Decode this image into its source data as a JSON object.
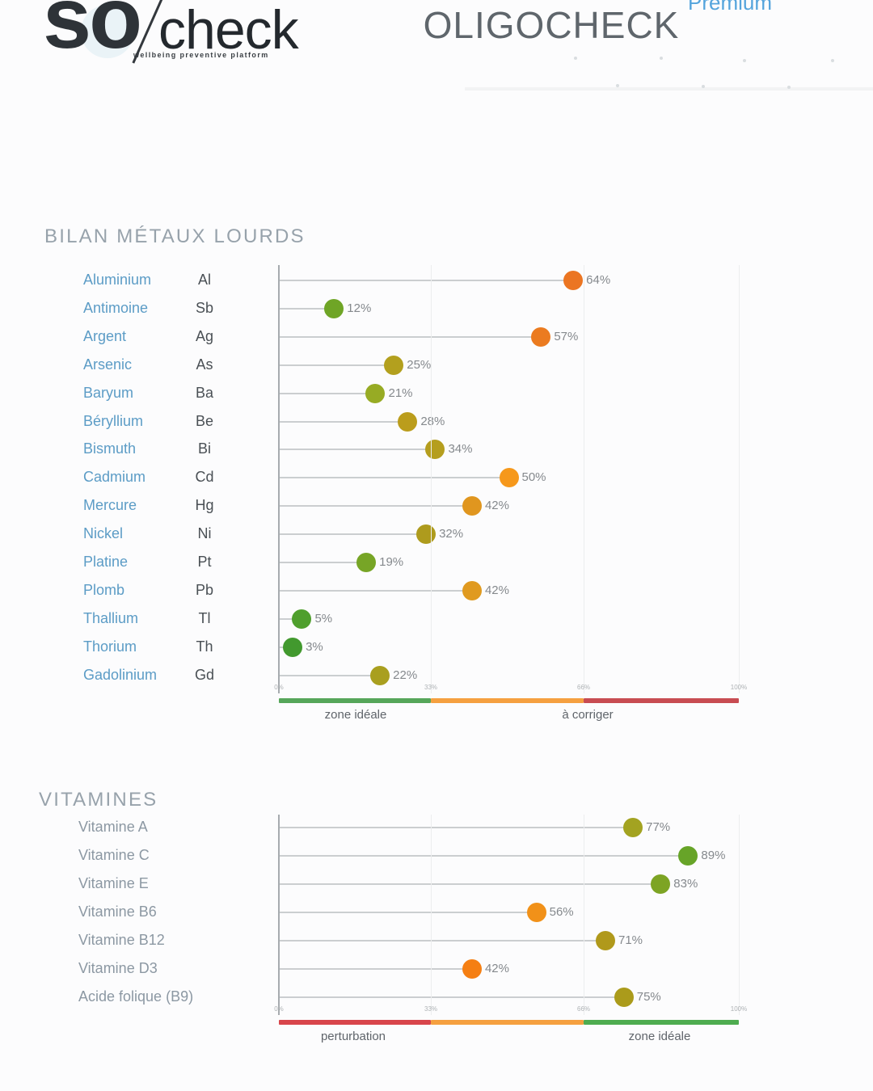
{
  "page": {
    "logo": {
      "part1": "so",
      "part2": "check",
      "tagline": "wellbeing preventive platform"
    },
    "title": "OLIGOCHECK",
    "badge": "Premium"
  },
  "metals_chart": {
    "heading": "BILAN MÉTAUX LOURDS",
    "rows": [
      {
        "name": "Aluminium",
        "symbol": "Al",
        "value": 64,
        "label": "64%",
        "color": "#EB7522"
      },
      {
        "name": "Antimoine",
        "symbol": "Sb",
        "value": 12,
        "label": "12%",
        "color": "#6FA526"
      },
      {
        "name": "Argent",
        "symbol": "Ag",
        "value": 57,
        "label": "57%",
        "color": "#EB7B20"
      },
      {
        "name": "Arsenic",
        "symbol": "As",
        "value": 25,
        "label": "25%",
        "color": "#B3A01E"
      },
      {
        "name": "Baryum",
        "symbol": "Ba",
        "value": 21,
        "label": "21%",
        "color": "#97AB24"
      },
      {
        "name": "Béryllium",
        "symbol": "Be",
        "value": 28,
        "label": "28%",
        "color": "#BB9D1C"
      },
      {
        "name": "Bismuth",
        "symbol": "Bi",
        "value": 34,
        "label": "34%",
        "color": "#B59E1E"
      },
      {
        "name": "Cadmium",
        "symbol": "Cd",
        "value": 50,
        "label": "50%",
        "color": "#F6981B"
      },
      {
        "name": "Mercure",
        "symbol": "Hg",
        "value": 42,
        "label": "42%",
        "color": "#E0961F"
      },
      {
        "name": "Nickel",
        "symbol": "Ni",
        "value": 32,
        "label": "32%",
        "color": "#AE9B1D"
      },
      {
        "name": "Platine",
        "symbol": "Pt",
        "value": 19,
        "label": "19%",
        "color": "#77A526"
      },
      {
        "name": "Plomb",
        "symbol": "Pb",
        "value": 42,
        "label": "42%",
        "color": "#E09A20"
      },
      {
        "name": "Thallium",
        "symbol": "Tl",
        "value": 5,
        "label": "5%",
        "color": "#4F9F2D"
      },
      {
        "name": "Thorium",
        "symbol": "Th",
        "value": 3,
        "label": "3%",
        "color": "#42992E"
      },
      {
        "name": "Gadolinium",
        "symbol": "Gd",
        "value": 22,
        "label": "22%",
        "color": "#A99F1F"
      }
    ],
    "axis": {
      "ticks": [
        "0%",
        "33%",
        "66%",
        "100%"
      ],
      "segment_colors": [
        "#56A65A",
        "#F5A040",
        "#C84C52"
      ],
      "zone_labels": [
        "zone idéale",
        "à corriger"
      ]
    }
  },
  "vitamins_chart": {
    "heading": "VITAMINES",
    "rows": [
      {
        "name": "Vitamine A",
        "value": 77,
        "label": "77%",
        "color": "#A3A321"
      },
      {
        "name": "Vitamine C",
        "value": 89,
        "label": "89%",
        "color": "#67A428"
      },
      {
        "name": "Vitamine E",
        "value": 83,
        "label": "83%",
        "color": "#7DA424"
      },
      {
        "name": "Vitamine B6",
        "value": 56,
        "label": "56%",
        "color": "#F19119"
      },
      {
        "name": "Vitamine B12",
        "value": 71,
        "label": "71%",
        "color": "#B0991B"
      },
      {
        "name": "Vitamine D3",
        "value": 42,
        "label": "42%",
        "color": "#F57F13"
      },
      {
        "name": "Acide folique (B9)",
        "value": 75,
        "label": "75%",
        "color": "#AB9B1B"
      }
    ],
    "axis": {
      "ticks": [
        "0%",
        "33%",
        "66%",
        "100%"
      ],
      "segment_colors": [
        "#D8454B",
        "#F5A040",
        "#4EAC50"
      ],
      "zone_labels": [
        "perturbation",
        "zone idéale"
      ]
    }
  },
  "chart_data": [
    {
      "type": "scatter",
      "title": "BILAN MÉTAUX LOURDS",
      "categories": [
        "Aluminium (Al)",
        "Antimoine (Sb)",
        "Argent (Ag)",
        "Arsenic (As)",
        "Baryum (Ba)",
        "Béryllium (Be)",
        "Bismuth (Bi)",
        "Cadmium (Cd)",
        "Mercure (Hg)",
        "Nickel (Ni)",
        "Platine (Pt)",
        "Plomb (Pb)",
        "Thallium (Tl)",
        "Thorium (Th)",
        "Gadolinium (Gd)"
      ],
      "values": [
        64,
        12,
        57,
        25,
        21,
        28,
        34,
        50,
        42,
        32,
        19,
        42,
        5,
        3,
        22
      ],
      "unit": "%",
      "xlim": [
        0,
        100
      ],
      "xticks": [
        "0%",
        "33%",
        "66%",
        "100%"
      ],
      "zones": [
        {
          "range": [
            0,
            33
          ],
          "label": "zone idéale",
          "color": "#56A65A"
        },
        {
          "range": [
            33,
            66
          ],
          "label": "",
          "color": "#F5A040"
        },
        {
          "range": [
            66,
            100
          ],
          "label": "à corriger",
          "color": "#C84C52"
        }
      ],
      "legend_position": "bottom",
      "grid": true
    },
    {
      "type": "scatter",
      "title": "VITAMINES",
      "categories": [
        "Vitamine A",
        "Vitamine C",
        "Vitamine E",
        "Vitamine B6",
        "Vitamine B12",
        "Vitamine D3",
        "Acide folique (B9)"
      ],
      "values": [
        77,
        89,
        83,
        56,
        71,
        42,
        75
      ],
      "unit": "%",
      "xlim": [
        0,
        100
      ],
      "xticks": [
        "0%",
        "33%",
        "66%",
        "100%"
      ],
      "zones": [
        {
          "range": [
            0,
            33
          ],
          "label": "perturbation",
          "color": "#D8454B"
        },
        {
          "range": [
            33,
            66
          ],
          "label": "",
          "color": "#F5A040"
        },
        {
          "range": [
            66,
            100
          ],
          "label": "zone idéale",
          "color": "#4EAC50"
        }
      ],
      "legend_position": "bottom",
      "grid": true
    }
  ]
}
